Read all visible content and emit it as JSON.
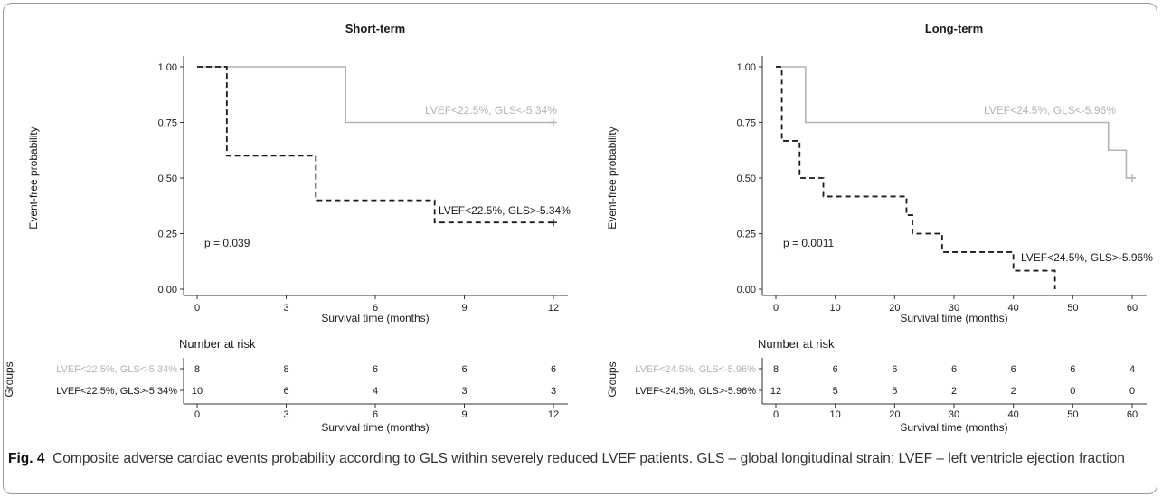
{
  "colors": {
    "group_low": "#b3b3b3",
    "group_high": "#1a1a1a",
    "axis": "#333333"
  },
  "figure": {
    "label": "Fig. 4",
    "caption": "Composite adverse cardiac events probability according to GLS within severely reduced LVEF patients. GLS – global longitudinal strain; LVEF – left ventricle ejection fraction"
  },
  "chart_data": [
    {
      "type": "line",
      "subtype": "kaplan-meier",
      "title": "Short-term",
      "xlabel": "Survival time (months)",
      "ylabel": "Event-free probability",
      "xlim": [
        0,
        12
      ],
      "ylim": [
        0,
        1
      ],
      "xticks": [
        0,
        3,
        6,
        9,
        12
      ],
      "yticks": [
        "0.00",
        "0.25",
        "0.50",
        "0.75",
        "1.00"
      ],
      "pvalue": "p = 0.039",
      "grid": false,
      "series": [
        {
          "name": "LVEF<22.5%, GLS<-5.34%",
          "style": "solid",
          "color": "#b3b3b3",
          "steps": [
            [
              0,
              1.0
            ],
            [
              5,
              0.75
            ],
            [
              12,
              0.75
            ]
          ],
          "censored": [
            [
              12,
              0.75
            ]
          ]
        },
        {
          "name": "LVEF<22.5%, GLS>-5.34%",
          "style": "dashed",
          "color": "#1a1a1a",
          "steps": [
            [
              0,
              1.0
            ],
            [
              1,
              0.6
            ],
            [
              4,
              0.4
            ],
            [
              8,
              0.3
            ],
            [
              12,
              0.3
            ]
          ],
          "censored": [
            [
              12,
              0.3
            ]
          ]
        }
      ],
      "risk_table": {
        "title": "Number at risk",
        "ylabel": "Groups",
        "xlabel": "Survival time (months)",
        "times": [
          0,
          3,
          6,
          9,
          12
        ],
        "rows": [
          {
            "name": "LVEF<22.5%, GLS<-5.34%",
            "counts": [
              8,
              8,
              6,
              6,
              6
            ]
          },
          {
            "name": "LVEF<22.5%, GLS>-5.34%",
            "counts": [
              10,
              6,
              4,
              3,
              3
            ]
          }
        ]
      }
    },
    {
      "type": "line",
      "subtype": "kaplan-meier",
      "title": "Long-term",
      "xlabel": "Survival time (months)",
      "ylabel": "Event-free probability",
      "xlim": [
        0,
        60
      ],
      "ylim": [
        0,
        1
      ],
      "xticks": [
        0,
        10,
        20,
        30,
        40,
        50,
        60
      ],
      "yticks": [
        "0.00",
        "0.25",
        "0.50",
        "0.75",
        "1.00"
      ],
      "pvalue": "p = 0.0011",
      "grid": false,
      "series": [
        {
          "name": "LVEF<24.5%, GLS<-5.96%",
          "style": "solid",
          "color": "#b3b3b3",
          "steps": [
            [
              0,
              1.0
            ],
            [
              5,
              0.75
            ],
            [
              56,
              0.625
            ],
            [
              59,
              0.5
            ],
            [
              60,
              0.5
            ]
          ],
          "censored": [
            [
              60,
              0.5
            ]
          ]
        },
        {
          "name": "LVEF<24.5%, GLS>-5.96%",
          "style": "dashed",
          "color": "#1a1a1a",
          "steps": [
            [
              0,
              1.0
            ],
            [
              1,
              0.667
            ],
            [
              4,
              0.5
            ],
            [
              8,
              0.417
            ],
            [
              22,
              0.333
            ],
            [
              23,
              0.25
            ],
            [
              28,
              0.167
            ],
            [
              40,
              0.083
            ],
            [
              47,
              0.0
            ]
          ],
          "censored": []
        }
      ],
      "risk_table": {
        "title": "Number at risk",
        "ylabel": "Groups",
        "xlabel": "Survival time (months)",
        "times": [
          0,
          10,
          20,
          30,
          40,
          50,
          60
        ],
        "rows": [
          {
            "name": "LVEF<24.5%, GLS<-5.96%",
            "counts": [
              8,
              6,
              6,
              6,
              6,
              6,
              4
            ]
          },
          {
            "name": "LVEF<24.5%, GLS>-5.96%",
            "counts": [
              12,
              5,
              5,
              2,
              2,
              0,
              0
            ]
          }
        ]
      }
    }
  ]
}
